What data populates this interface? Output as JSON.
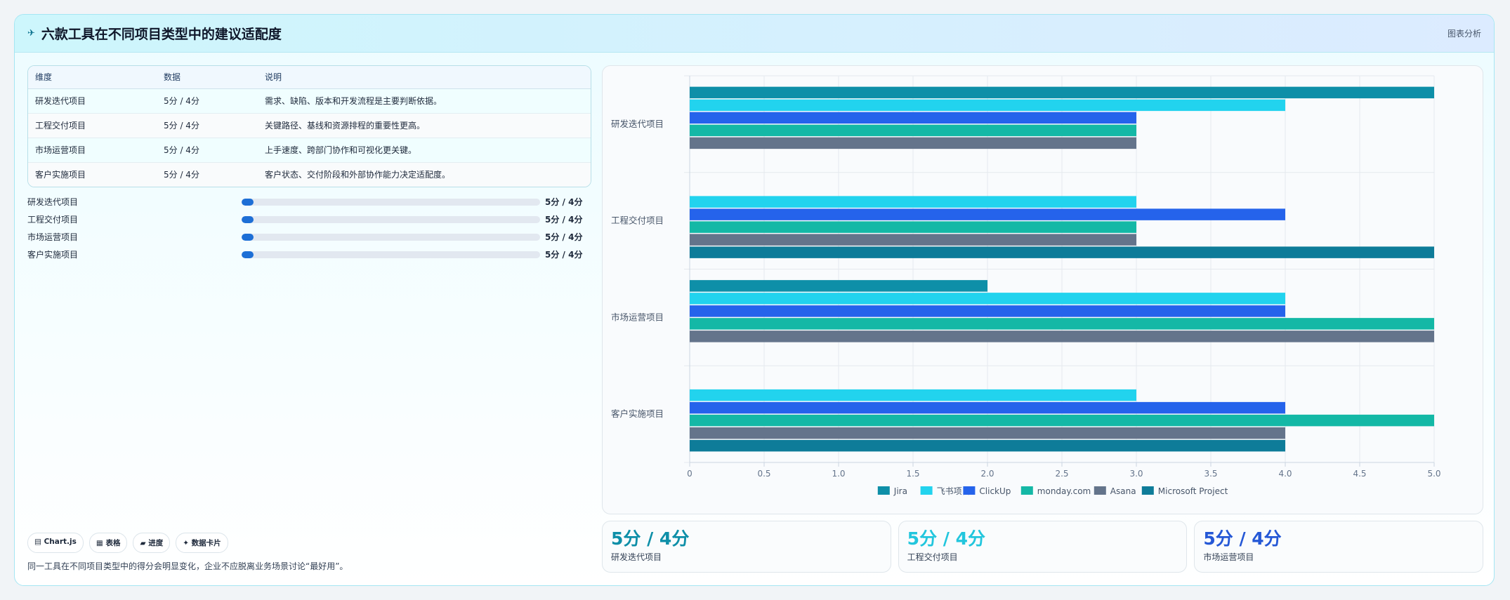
{
  "header": {
    "title": "六款工具在不同项目类型中的建议适配度",
    "tag": "图表分析",
    "icon": "satellite-icon"
  },
  "table": {
    "headers": [
      "维度",
      "数据",
      "说明"
    ],
    "rows": [
      [
        "研发迭代项目",
        "5分 / 4分",
        "需求、缺陷、版本和开发流程是主要判断依据。"
      ],
      [
        "工程交付项目",
        "5分 / 4分",
        "关键路径、基线和资源排程的重要性更高。"
      ],
      [
        "市场运营项目",
        "5分 / 4分",
        "上手速度、跨部门协作和可视化更关键。"
      ],
      [
        "客户实施项目",
        "5分 / 4分",
        "客户状态、交付阶段和外部协作能力决定适配度。"
      ]
    ]
  },
  "progress": [
    {
      "label": "研发迭代项目",
      "value": "5分 / 4分",
      "fraction": 0.04
    },
    {
      "label": "工程交付项目",
      "value": "5分 / 4分",
      "fraction": 0.04
    },
    {
      "label": "市场运营项目",
      "value": "5分 / 4分",
      "fraction": 0.04
    },
    {
      "label": "客户实施项目",
      "value": "5分 / 4分",
      "fraction": 0.04
    }
  ],
  "chips": [
    "▤ Chart.js",
    "▦ 表格",
    "▰ 进度",
    "✦ 数据卡片"
  ],
  "footer_note": "同一工具在不同项目类型中的得分会明显变化，企业不应脱离业务场景讨论“最好用”。",
  "kpis": [
    {
      "value": "5分 / 4分",
      "label": "研发迭代项目",
      "color": "#0e8fa8"
    },
    {
      "value": "5分 / 4分",
      "label": "工程交付项目",
      "color": "#22c6dd"
    },
    {
      "value": "5分 / 4分",
      "label": "市场运营项目",
      "color": "#2558d6"
    }
  ],
  "chart_data": {
    "type": "bar",
    "orientation": "horizontal",
    "categories": [
      "研发迭代项目",
      "工程交付项目",
      "市场运营项目",
      "客户实施项目"
    ],
    "series": [
      {
        "name": "Jira",
        "color": "#0e8fa8",
        "values": [
          5,
          0,
          2,
          0
        ]
      },
      {
        "name": "飞书项目",
        "color": "#22d3ee",
        "values": [
          4,
          3,
          4,
          3
        ]
      },
      {
        "name": "ClickUp",
        "color": "#2563eb",
        "values": [
          3,
          4,
          4,
          4
        ]
      },
      {
        "name": "monday.com",
        "color": "#14b8a6",
        "values": [
          3,
          3,
          5,
          5
        ]
      },
      {
        "name": "Asana",
        "color": "#64748b",
        "values": [
          3,
          3,
          5,
          4
        ]
      },
      {
        "name": "Microsoft Project",
        "color": "#0e7c99",
        "values": [
          0,
          5,
          0,
          4
        ]
      }
    ],
    "xlim": [
      0,
      5
    ],
    "ticks": [
      "0",
      "0.5",
      "1.0",
      "1.5",
      "2.0",
      "2.5",
      "3.0",
      "3.5",
      "4.0",
      "4.5",
      "5.0"
    ],
    "grid": true,
    "legend": "bottom"
  }
}
